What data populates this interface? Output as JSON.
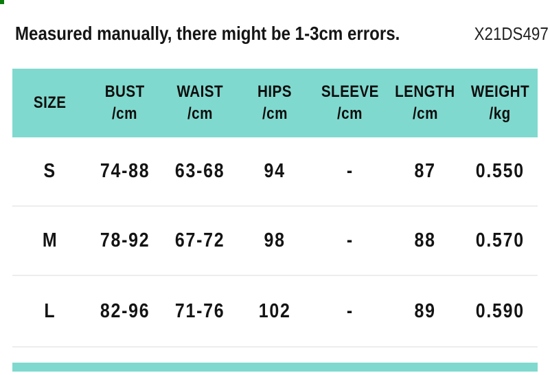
{
  "page": {
    "note": "Measured manually, there might be 1-3cm errors.",
    "product_code": "X21DS497"
  },
  "size_chart": {
    "columns": [
      {
        "label": "SIZE",
        "unit": ""
      },
      {
        "label": "BUST",
        "unit": "/cm"
      },
      {
        "label": "WAIST",
        "unit": "/cm"
      },
      {
        "label": "HIPS",
        "unit": "/cm"
      },
      {
        "label": "SLEEVE",
        "unit": "/cm"
      },
      {
        "label": "LENGTH",
        "unit": "/cm"
      },
      {
        "label": "WEIGHT",
        "unit": "/kg"
      }
    ],
    "rows": [
      {
        "size": "S",
        "bust": "74-88",
        "waist": "63-68",
        "hips": "94",
        "sleeve": "-",
        "length": "87",
        "weight": "0.550"
      },
      {
        "size": "M",
        "bust": "78-92",
        "waist": "67-72",
        "hips": "98",
        "sleeve": "-",
        "length": "88",
        "weight": "0.570"
      },
      {
        "size": "L",
        "bust": "82-96",
        "waist": "71-76",
        "hips": "102",
        "sleeve": "-",
        "length": "89",
        "weight": "0.590"
      }
    ]
  },
  "colors": {
    "header_bg": "#80d9ce",
    "next_section_strip": "#80d9ce",
    "text": "#141414",
    "divider": "#ededed",
    "corner_mark": "#0a7c0a"
  }
}
